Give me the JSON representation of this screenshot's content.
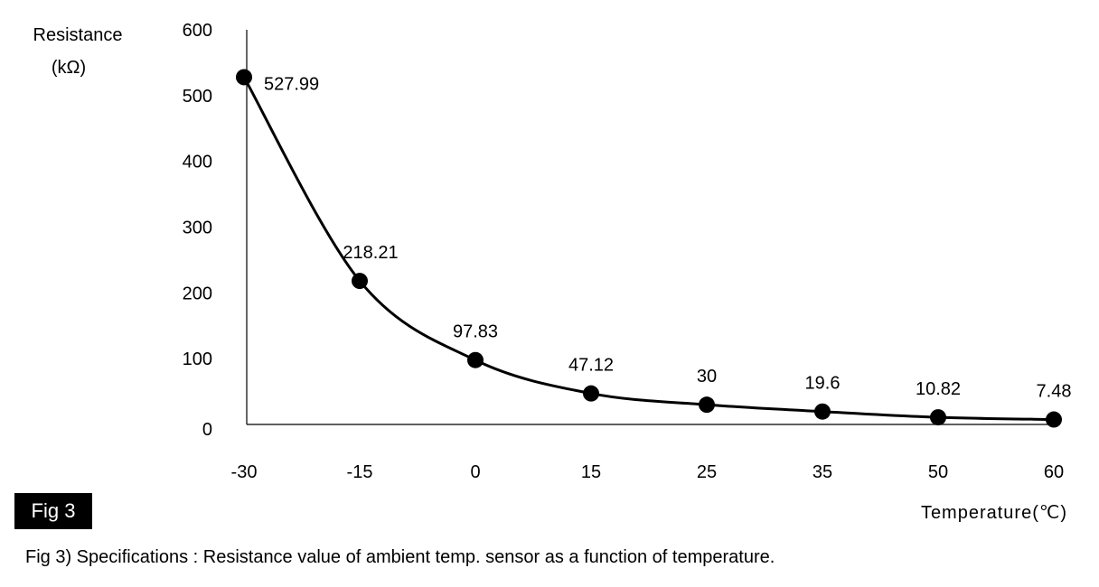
{
  "chart_data": {
    "type": "line",
    "title": "",
    "ylabel_line1": "Resistance",
    "ylabel_line2": "(kΩ)",
    "xlabel": "Temperature(℃)",
    "ylim": [
      0,
      600
    ],
    "yticks": [
      "0",
      "100",
      "200",
      "300",
      "400",
      "500",
      "600"
    ],
    "ytick_values": [
      0,
      100,
      200,
      300,
      400,
      500,
      600
    ],
    "categories": [
      "-30",
      "-15",
      "0",
      "15",
      "25",
      "35",
      "50",
      "60"
    ],
    "series": [
      {
        "name": "Resistance",
        "values": [
          527.99,
          218.21,
          97.83,
          47.12,
          30,
          19.6,
          10.82,
          7.48
        ],
        "labels": [
          "527.99",
          "218.21",
          "97.83",
          "47.12",
          "30",
          "19.6",
          "10.82",
          "7.48"
        ],
        "color": "#000000",
        "marker": "filled-circle",
        "smooth": true
      }
    ],
    "grid": false,
    "legend": "none"
  },
  "figure": {
    "badge": "Fig 3",
    "caption": "Fig 3) Specifications : Resistance value of ambient temp. sensor as a function of temperature."
  },
  "colors": {
    "ink": "#000000",
    "background": "#ffffff"
  }
}
